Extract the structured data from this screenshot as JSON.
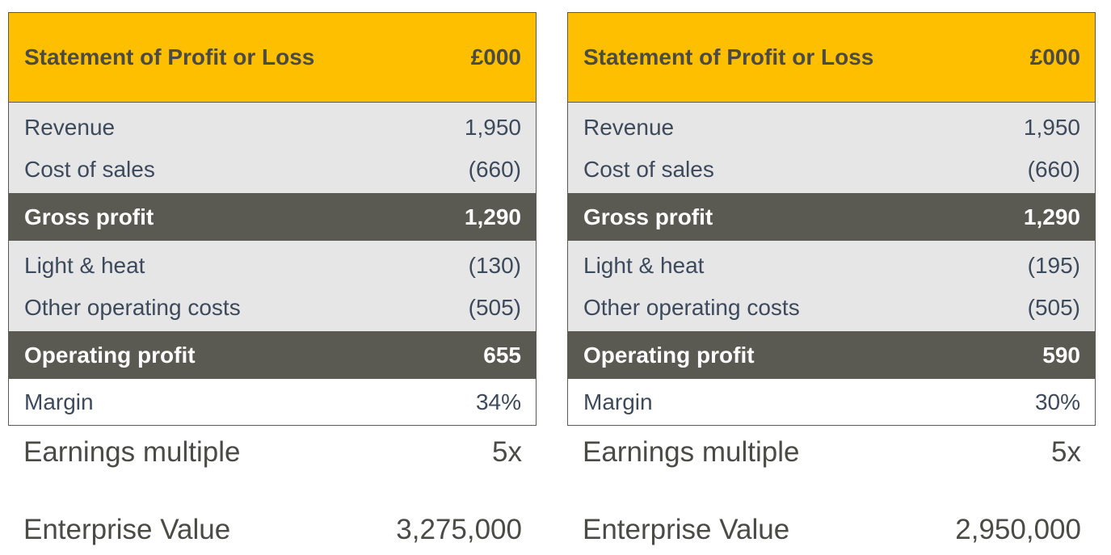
{
  "panels": [
    {
      "header": {
        "title": "Statement of Profit or Loss",
        "unit": "£000"
      },
      "rows": {
        "revenue": {
          "label": "Revenue",
          "value": "1,950"
        },
        "cost_of_sales": {
          "label": "Cost of sales",
          "value": "(660)"
        },
        "gross_profit": {
          "label": "Gross profit",
          "value": "1,290"
        },
        "light_heat": {
          "label": "Light & heat",
          "value": "(130)"
        },
        "other_costs": {
          "label": "Other operating costs",
          "value": "(505)"
        },
        "operating_profit": {
          "label": "Operating profit",
          "value": "655"
        },
        "margin": {
          "label": "Margin",
          "value": "34%"
        }
      },
      "earnings_multiple": {
        "label": "Earnings multiple",
        "value": "5x"
      },
      "enterprise_value": {
        "label": "Enterprise Value",
        "value": "3,275,000"
      }
    },
    {
      "header": {
        "title": "Statement of Profit or Loss",
        "unit": "£000"
      },
      "rows": {
        "revenue": {
          "label": "Revenue",
          "value": "1,950"
        },
        "cost_of_sales": {
          "label": "Cost of sales",
          "value": "(660)"
        },
        "gross_profit": {
          "label": "Gross profit",
          "value": "1,290"
        },
        "light_heat": {
          "label": "Light & heat",
          "value": "(195)"
        },
        "other_costs": {
          "label": "Other operating costs",
          "value": "(505)"
        },
        "operating_profit": {
          "label": "Operating profit",
          "value": "590"
        },
        "margin": {
          "label": "Margin",
          "value": "30%"
        }
      },
      "earnings_multiple": {
        "label": "Earnings multiple",
        "value": "5x"
      },
      "enterprise_value": {
        "label": "Enterprise Value",
        "value": "2,950,000"
      }
    }
  ],
  "colors": {
    "header_bg": "#fdbf00",
    "dark_row_bg": "#5a5a52",
    "light_row_bg": "#e6e6e6",
    "text_dark": "#3d4a5c"
  }
}
